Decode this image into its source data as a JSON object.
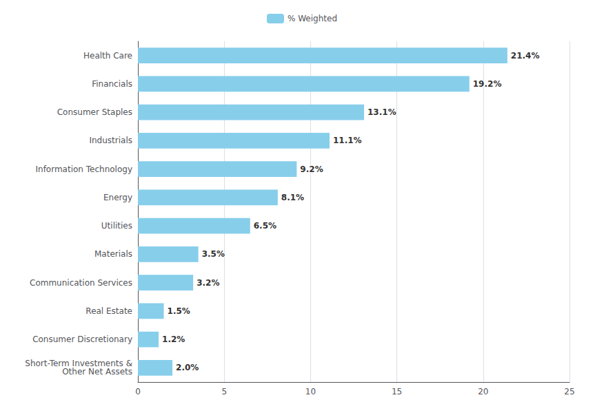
{
  "chart_data": {
    "type": "bar",
    "orientation": "horizontal",
    "categories": [
      "Short-Term Investments &\nOther Net Assets",
      "Consumer Discretionary",
      "Real Estate",
      "Communication Services",
      "Materials",
      "Utilities",
      "Energy",
      "Information Technology",
      "Industrials",
      "Consumer Staples",
      "Financials",
      "Health Care"
    ],
    "series": [
      {
        "name": "% Weighted",
        "color": "#87CEEB",
        "values": [
          2.0,
          1.2,
          1.5,
          3.2,
          3.5,
          6.5,
          8.1,
          9.2,
          11.1,
          13.1,
          19.2,
          21.4
        ],
        "value_labels": [
          "2.0%",
          "1.2%",
          "1.5%",
          "3.2%",
          "3.5%",
          "6.5%",
          "8.1%",
          "9.2%",
          "11.1%",
          "13.1%",
          "19.2%",
          "21.4%"
        ]
      }
    ],
    "data_labels": true,
    "xlim": [
      0,
      25
    ],
    "xticks": [
      0,
      5,
      10,
      15,
      20,
      25
    ],
    "grid": true,
    "legend": "top"
  }
}
